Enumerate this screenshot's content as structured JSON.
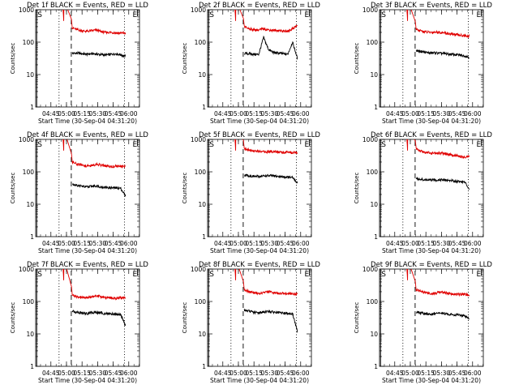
{
  "chart_data": [
    {
      "type": "line",
      "title": "Det 1f BLACK = Events, RED = LLD",
      "xlabel": "Start Time (30-Sep-04 04:31:20)",
      "ylabel": "Counts/sec",
      "y_scale": "log",
      "ylim": [
        1,
        1000
      ],
      "x_ticks": [
        "04:45",
        "05:00",
        "05:15",
        "05:30",
        "05:45",
        "06:00"
      ],
      "y_ticks": [
        "1",
        "10",
        "100",
        "1000"
      ],
      "markers": [
        "S",
        "E"
      ],
      "colors": {
        "events": "#000000",
        "lld": "#e00000"
      },
      "series": [
        {
          "name": "Events",
          "values": [
            45,
            46,
            44,
            42,
            44,
            43,
            41,
            40,
            42,
            44,
            41,
            36
          ]
        },
        {
          "name": "LLD",
          "values": [
            280,
            240,
            225,
            215,
            225,
            235,
            210,
            200,
            200,
            195,
            190,
            190
          ]
        }
      ]
    },
    {
      "type": "line",
      "title": "Det 2f BLACK = Events, RED = LLD",
      "xlabel": "Start Time (30-Sep-04 04:31:20)",
      "ylabel": "Counts/sec",
      "y_scale": "log",
      "ylim": [
        1,
        1000
      ],
      "x_ticks": [
        "04:45",
        "05:00",
        "05:15",
        "05:30",
        "05:45",
        "06:00"
      ],
      "y_ticks": [
        "1",
        "10",
        "100",
        "1000"
      ],
      "markers": [
        "S",
        "E"
      ],
      "colors": {
        "events": "#000000",
        "lld": "#e00000"
      },
      "series": [
        {
          "name": "Events",
          "values": [
            45,
            44,
            42,
            42,
            140,
            60,
            48,
            46,
            44,
            42,
            100,
            32
          ]
        },
        {
          "name": "LLD",
          "values": [
            300,
            260,
            240,
            235,
            260,
            240,
            230,
            230,
            220,
            215,
            260,
            330
          ]
        }
      ]
    },
    {
      "type": "line",
      "title": "Det 3f BLACK = Events, RED = LLD",
      "xlabel": "Start Time (30-Sep-04 04:31:20)",
      "ylabel": "Counts/sec",
      "y_scale": "log",
      "ylim": [
        1,
        1000
      ],
      "x_ticks": [
        "04:45",
        "05:00",
        "05:15",
        "05:30",
        "05:45",
        "06:00"
      ],
      "y_ticks": [
        "1",
        "10",
        "100",
        "1000"
      ],
      "markers": [
        "S",
        "E"
      ],
      "colors": {
        "events": "#000000",
        "lld": "#e00000"
      },
      "series": [
        {
          "name": "Events",
          "values": [
            55,
            52,
            48,
            46,
            47,
            45,
            44,
            42,
            41,
            40,
            38,
            34
          ]
        },
        {
          "name": "LLD",
          "values": [
            240,
            220,
            205,
            200,
            205,
            200,
            190,
            180,
            170,
            165,
            160,
            150
          ]
        }
      ]
    },
    {
      "type": "line",
      "title": "Det 4f BLACK = Events, RED = LLD",
      "xlabel": "Start Time (30-Sep-04 04:31:20)",
      "ylabel": "Counts/sec",
      "y_scale": "log",
      "ylim": [
        1,
        1000
      ],
      "x_ticks": [
        "04:45",
        "05:00",
        "05:15",
        "05:30",
        "05:45",
        "06:00"
      ],
      "y_ticks": [
        "1",
        "10",
        "100",
        "1000"
      ],
      "markers": [
        "S",
        "E"
      ],
      "colors": {
        "events": "#000000",
        "lld": "#e00000"
      },
      "series": [
        {
          "name": "Events",
          "values": [
            42,
            38,
            36,
            34,
            36,
            37,
            34,
            33,
            32,
            32,
            31,
            18
          ]
        },
        {
          "name": "LLD",
          "values": [
            200,
            170,
            160,
            150,
            155,
            170,
            160,
            150,
            145,
            150,
            145,
            145
          ]
        }
      ]
    },
    {
      "type": "line",
      "title": "Det 5f BLACK = Events, RED = LLD",
      "xlabel": "Start Time (30-Sep-04 04:31:20)",
      "ylabel": "Counts/sec",
      "y_scale": "log",
      "ylim": [
        1,
        1000
      ],
      "x_ticks": [
        "04:45",
        "05:00",
        "05:15",
        "05:30",
        "05:45",
        "06:00"
      ],
      "y_ticks": [
        "1",
        "10",
        "100",
        "1000"
      ],
      "markers": [
        "S",
        "E"
      ],
      "colors": {
        "events": "#000000",
        "lld": "#e00000"
      },
      "series": [
        {
          "name": "Events",
          "values": [
            80,
            75,
            72,
            72,
            74,
            76,
            74,
            72,
            70,
            68,
            66,
            45
          ]
        },
        {
          "name": "LLD",
          "values": [
            520,
            470,
            440,
            420,
            410,
            420,
            430,
            410,
            400,
            395,
            390,
            390
          ]
        }
      ]
    },
    {
      "type": "line",
      "title": "Det 6f BLACK = Events, RED = LLD",
      "xlabel": "Start Time (30-Sep-04 04:31:20)",
      "ylabel": "Counts/sec",
      "y_scale": "log",
      "ylim": [
        1,
        1000
      ],
      "x_ticks": [
        "04:45",
        "05:00",
        "05:15",
        "05:30",
        "05:45",
        "06:00"
      ],
      "y_ticks": [
        "1",
        "10",
        "100",
        "1000"
      ],
      "markers": [
        "S",
        "E"
      ],
      "colors": {
        "events": "#000000",
        "lld": "#e00000"
      },
      "series": [
        {
          "name": "Events",
          "values": [
            62,
            58,
            56,
            55,
            56,
            57,
            55,
            54,
            52,
            50,
            49,
            30
          ]
        },
        {
          "name": "LLD",
          "values": [
            500,
            430,
            400,
            380,
            370,
            380,
            360,
            340,
            320,
            300,
            290,
            290
          ]
        }
      ]
    },
    {
      "type": "line",
      "title": "Det 7f BLACK = Events, RED = LLD",
      "xlabel": "Start Time (30-Sep-04 04:31:20)",
      "ylabel": "Counts/sec",
      "y_scale": "log",
      "ylim": [
        1,
        1000
      ],
      "x_ticks": [
        "04:45",
        "05:00",
        "05:15",
        "05:30",
        "05:45",
        "06:00"
      ],
      "y_ticks": [
        "1",
        "10",
        "100",
        "1000"
      ],
      "markers": [
        "S",
        "E"
      ],
      "colors": {
        "events": "#000000",
        "lld": "#e00000"
      },
      "series": [
        {
          "name": "Events",
          "values": [
            50,
            47,
            44,
            42,
            45,
            46,
            44,
            42,
            42,
            40,
            40,
            18
          ]
        },
        {
          "name": "LLD",
          "values": [
            160,
            140,
            135,
            130,
            140,
            150,
            140,
            130,
            130,
            125,
            130,
            130
          ]
        }
      ]
    },
    {
      "type": "line",
      "title": "Det 8f BLACK = Events, RED = LLD",
      "xlabel": "Start Time (30-Sep-04 04:31:20)",
      "ylabel": "Counts/sec",
      "y_scale": "log",
      "ylim": [
        1,
        1000
      ],
      "x_ticks": [
        "04:45",
        "05:00",
        "05:15",
        "05:30",
        "05:45",
        "06:00"
      ],
      "y_ticks": [
        "1",
        "10",
        "100",
        "1000"
      ],
      "markers": [
        "S",
        "E"
      ],
      "colors": {
        "events": "#000000",
        "lld": "#e00000"
      },
      "series": [
        {
          "name": "Events",
          "values": [
            55,
            50,
            46,
            45,
            47,
            50,
            47,
            45,
            44,
            43,
            42,
            12
          ]
        },
        {
          "name": "LLD",
          "values": [
            230,
            200,
            185,
            175,
            185,
            200,
            190,
            180,
            175,
            170,
            170,
            170
          ]
        }
      ]
    },
    {
      "type": "line",
      "title": "Det 9f BLACK = Events, RED = LLD",
      "xlabel": "Start Time (30-Sep-04 04:31:20)",
      "ylabel": "Counts/sec",
      "y_scale": "log",
      "ylim": [
        1,
        1000
      ],
      "x_ticks": [
        "04:45",
        "05:00",
        "05:15",
        "05:30",
        "05:45",
        "06:00"
      ],
      "y_ticks": [
        "1",
        "10",
        "100",
        "1000"
      ],
      "markers": [
        "S",
        "E"
      ],
      "colors": {
        "events": "#000000",
        "lld": "#e00000"
      },
      "series": [
        {
          "name": "Events",
          "values": [
            48,
            44,
            42,
            40,
            42,
            44,
            42,
            40,
            39,
            38,
            36,
            30
          ]
        },
        {
          "name": "LLD",
          "values": [
            230,
            200,
            185,
            175,
            180,
            195,
            185,
            175,
            170,
            165,
            165,
            160
          ]
        }
      ]
    }
  ]
}
